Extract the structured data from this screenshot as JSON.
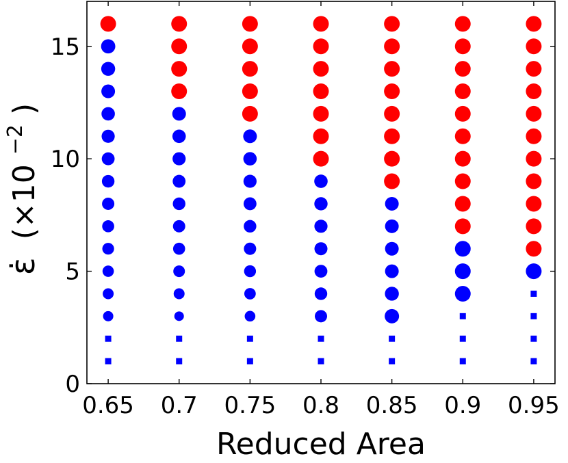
{
  "chart_data": {
    "type": "scatter",
    "xlabel": "Reduced Area",
    "ylabel_symbol": "ε̇",
    "ylabel_scale_prefix": "(×10",
    "ylabel_exponent": "−2",
    "ylabel_suffix": ")",
    "xlim": [
      0.635,
      0.965
    ],
    "ylim": [
      0,
      17
    ],
    "x_ticks": [
      0.65,
      0.7,
      0.75,
      0.8,
      0.85,
      0.9,
      0.95
    ],
    "x_tick_labels": [
      "0.65",
      "0.7",
      "0.75",
      "0.8",
      "0.85",
      "0.9",
      "0.95"
    ],
    "y_ticks": [
      0,
      5,
      10,
      15
    ],
    "y_tick_labels": [
      "0",
      "5",
      "10",
      "15"
    ],
    "grid": false,
    "legend": false,
    "colors": {
      "red_circle": "#ff0000",
      "blue_circle": "#0000ff",
      "blue_square": "#0000ff"
    },
    "marker_kinds": [
      "blue_square",
      "blue_circle",
      "red_circle"
    ],
    "columns": [
      {
        "x": 0.65,
        "ys": [
          1,
          2,
          3,
          4,
          5,
          6,
          7,
          8,
          9,
          10,
          11,
          12,
          13,
          14,
          15,
          16
        ],
        "kinds": [
          0,
          0,
          1,
          1,
          1,
          1,
          1,
          1,
          1,
          1,
          1,
          1,
          1,
          1,
          1,
          2
        ],
        "sizes": [
          0.6,
          0.6,
          0.75,
          0.8,
          0.83,
          0.86,
          0.88,
          0.9,
          0.92,
          0.94,
          0.96,
          0.98,
          1.0,
          1.02,
          1.04,
          1.15
        ]
      },
      {
        "x": 0.7,
        "ys": [
          1,
          2,
          3,
          4,
          5,
          6,
          7,
          8,
          9,
          10,
          11,
          12,
          13,
          14,
          15,
          16
        ],
        "kinds": [
          0,
          0,
          1,
          1,
          1,
          1,
          1,
          1,
          1,
          1,
          1,
          1,
          2,
          2,
          2,
          2
        ],
        "sizes": [
          0.6,
          0.6,
          0.7,
          0.8,
          0.85,
          0.88,
          0.9,
          0.92,
          0.94,
          0.96,
          0.98,
          1.0,
          1.15,
          1.15,
          1.15,
          1.15
        ]
      },
      {
        "x": 0.75,
        "ys": [
          1,
          2,
          3,
          4,
          5,
          6,
          7,
          8,
          9,
          10,
          11,
          12,
          13,
          14,
          15,
          16
        ],
        "kinds": [
          0,
          0,
          1,
          1,
          1,
          1,
          1,
          1,
          1,
          1,
          1,
          2,
          2,
          2,
          2,
          2
        ],
        "sizes": [
          0.6,
          0.6,
          0.78,
          0.84,
          0.87,
          0.9,
          0.92,
          0.94,
          0.96,
          0.98,
          1.0,
          1.15,
          1.15,
          1.15,
          1.15,
          1.15
        ]
      },
      {
        "x": 0.8,
        "ys": [
          1,
          2,
          3,
          4,
          5,
          6,
          7,
          8,
          9,
          10,
          11,
          12,
          13,
          14,
          15,
          16
        ],
        "kinds": [
          0,
          0,
          1,
          1,
          1,
          1,
          1,
          1,
          1,
          2,
          2,
          2,
          2,
          2,
          2,
          2
        ],
        "sizes": [
          0.6,
          0.6,
          0.9,
          0.92,
          0.94,
          0.95,
          0.96,
          0.97,
          0.98,
          1.15,
          1.15,
          1.15,
          1.15,
          1.15,
          1.15,
          1.15
        ]
      },
      {
        "x": 0.85,
        "ys": [
          1,
          2,
          3,
          4,
          5,
          6,
          7,
          8,
          9,
          10,
          11,
          12,
          13,
          14,
          15,
          16
        ],
        "kinds": [
          0,
          0,
          1,
          1,
          1,
          1,
          1,
          1,
          2,
          2,
          2,
          2,
          2,
          2,
          2,
          2
        ],
        "sizes": [
          0.6,
          0.6,
          1.05,
          1.02,
          1.0,
          1.0,
          1.0,
          1.0,
          1.15,
          1.15,
          1.15,
          1.15,
          1.15,
          1.15,
          1.15,
          1.15
        ]
      },
      {
        "x": 0.9,
        "ys": [
          1,
          2,
          3,
          4,
          5,
          6,
          7,
          8,
          9,
          10,
          11,
          12,
          13,
          14,
          15,
          16
        ],
        "kinds": [
          0,
          0,
          0,
          1,
          1,
          1,
          2,
          2,
          2,
          2,
          2,
          2,
          2,
          2,
          2,
          2
        ],
        "sizes": [
          0.6,
          0.6,
          0.6,
          1.15,
          1.15,
          1.15,
          1.15,
          1.15,
          1.15,
          1.15,
          1.15,
          1.15,
          1.15,
          1.15,
          1.15,
          1.15
        ]
      },
      {
        "x": 0.95,
        "ys": [
          1,
          2,
          3,
          4,
          5,
          6,
          7,
          8,
          9,
          10,
          11,
          12,
          13,
          14,
          15,
          16
        ],
        "kinds": [
          0,
          0,
          0,
          0,
          1,
          2,
          2,
          2,
          2,
          2,
          2,
          2,
          2,
          2,
          2,
          2
        ],
        "sizes": [
          0.6,
          0.6,
          0.6,
          0.6,
          1.15,
          1.15,
          1.15,
          1.15,
          1.15,
          1.15,
          1.15,
          1.15,
          1.15,
          1.15,
          1.15,
          1.15
        ]
      }
    ]
  }
}
